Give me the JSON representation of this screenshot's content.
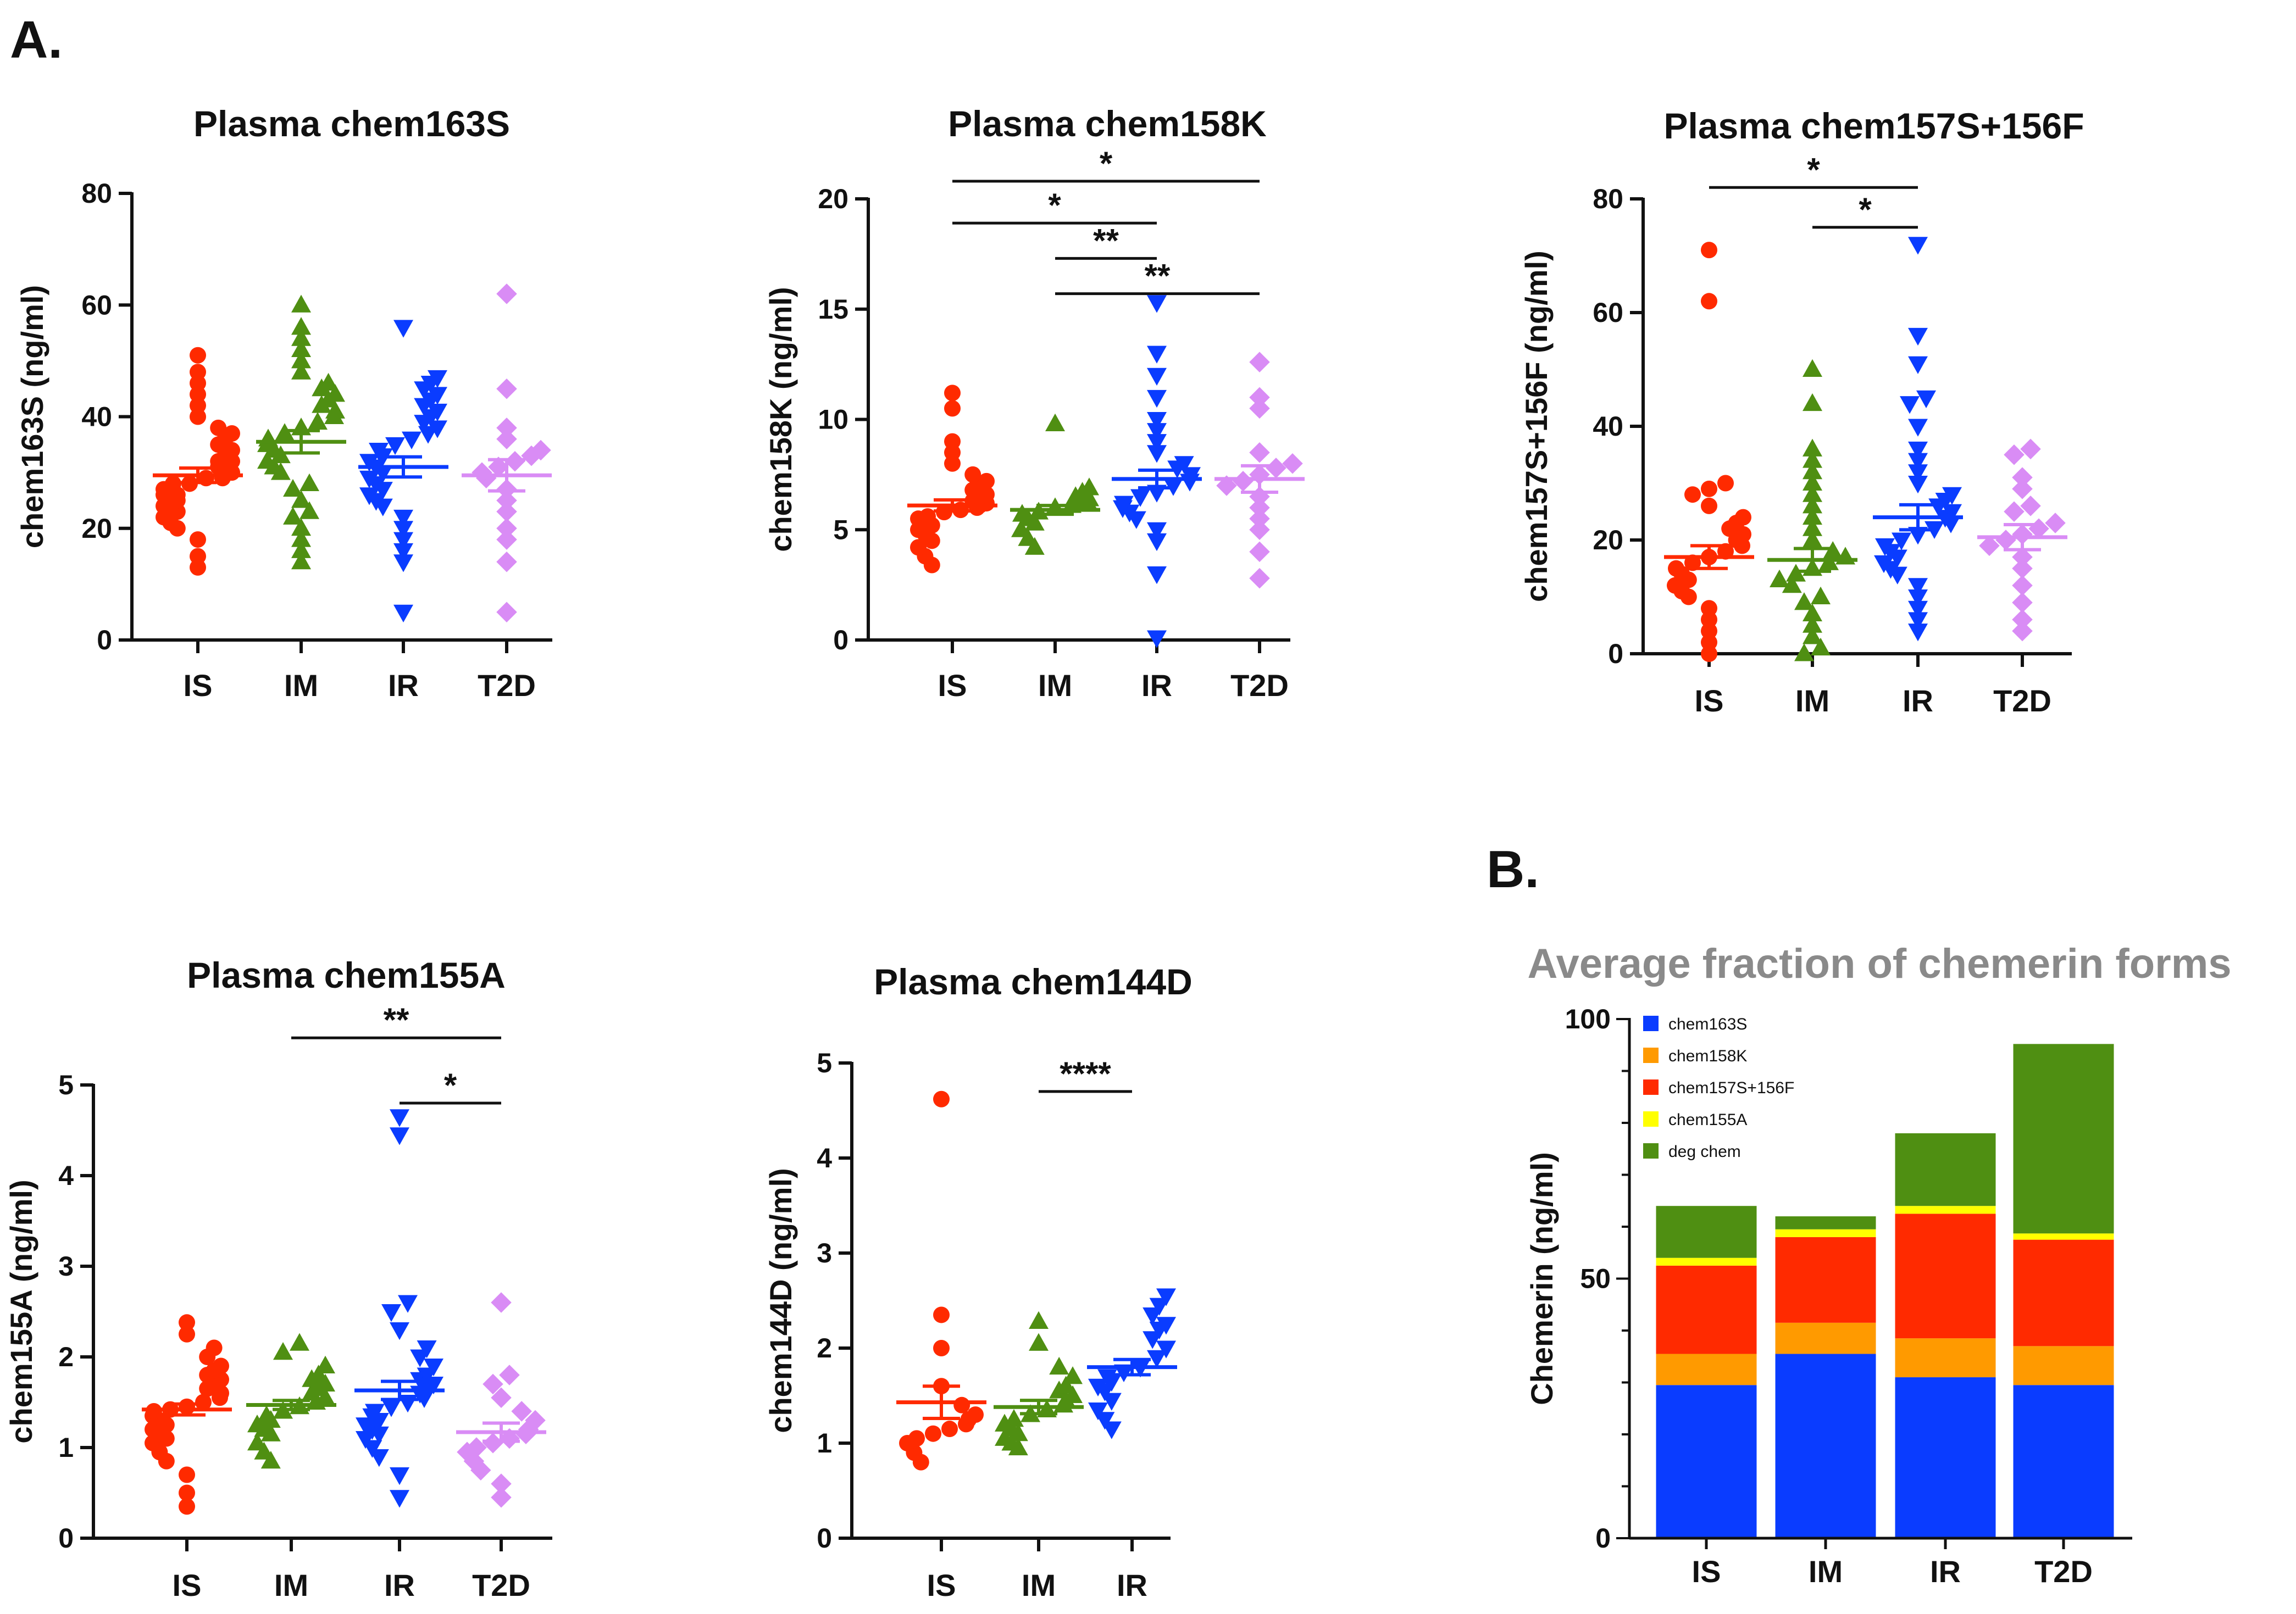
{
  "figure": {
    "panel_a_label": "A.",
    "panel_b_label": "B."
  },
  "colors": {
    "IS": "#ff2a00",
    "IM": "#4f8f12",
    "IR": "#0a3cff",
    "T2D": "#d98cf5"
  },
  "chart_data": [
    {
      "type": "scatter",
      "title": "Plasma chem163S",
      "ylabel": "chem163S (ng/ml)",
      "xlabel": "",
      "ylim": [
        0,
        80
      ],
      "yticks": [
        "0",
        "20",
        "40",
        "60",
        "80"
      ],
      "categories": [
        "IS",
        "IM",
        "IR",
        "T2D"
      ],
      "groups": [
        {
          "name": "IS",
          "mean": 29.5,
          "sem": 1.3,
          "values": [
            13,
            15,
            18,
            20,
            21,
            22,
            23,
            24,
            24,
            25,
            25,
            26,
            26,
            27,
            27,
            28,
            28,
            29,
            29,
            30,
            30,
            31,
            31,
            32,
            32,
            33,
            34,
            35,
            36,
            37,
            38,
            40,
            42,
            44,
            46,
            48,
            51
          ]
        },
        {
          "name": "IM",
          "mean": 35.5,
          "sem": 2.0,
          "values": [
            14,
            16,
            18,
            20,
            22,
            23,
            25,
            27,
            28,
            30,
            31,
            32,
            33,
            34,
            35,
            36,
            37,
            38,
            39,
            40,
            41,
            42,
            43,
            44,
            45,
            46,
            48,
            50,
            52,
            54,
            56,
            60
          ]
        },
        {
          "name": "IR",
          "mean": 31.0,
          "sem": 1.8,
          "values": [
            5,
            14,
            16,
            18,
            20,
            22,
            24,
            25,
            26,
            27,
            28,
            29,
            30,
            31,
            32,
            33,
            34,
            35,
            36,
            37,
            38,
            39,
            40,
            41,
            42,
            43,
            44,
            45,
            46,
            47,
            56
          ]
        },
        {
          "name": "T2D",
          "mean": 29.5,
          "sem": 2.8,
          "values": [
            5,
            14,
            18,
            20,
            23,
            25,
            27,
            29,
            30,
            31,
            32,
            33,
            34,
            36,
            38,
            45,
            62
          ]
        }
      ],
      "significance": []
    },
    {
      "type": "scatter",
      "title": "Plasma chem158K",
      "ylabel": "chem158K (ng/ml)",
      "xlabel": "",
      "ylim": [
        0,
        20
      ],
      "yticks": [
        "0",
        "5",
        "10",
        "15",
        "20"
      ],
      "categories": [
        "IS",
        "IM",
        "IR",
        "T2D"
      ],
      "groups": [
        {
          "name": "IS",
          "mean": 6.1,
          "sem": 0.25,
          "values": [
            3.4,
            3.8,
            4.2,
            4.5,
            4.8,
            5.0,
            5.2,
            5.4,
            5.5,
            5.6,
            5.8,
            5.9,
            6.0,
            6.1,
            6.2,
            6.3,
            6.5,
            6.6,
            6.8,
            7.0,
            7.2,
            7.5,
            8.0,
            8.5,
            9.0,
            10.5,
            11.2
          ]
        },
        {
          "name": "IM",
          "mean": 5.9,
          "sem": 0.2,
          "values": [
            4.2,
            4.6,
            5.0,
            5.3,
            5.5,
            5.7,
            5.8,
            6.0,
            6.1,
            6.2,
            6.3,
            6.4,
            6.5,
            6.7,
            6.9,
            9.8
          ]
        },
        {
          "name": "IR",
          "mean": 7.3,
          "sem": 0.4,
          "values": [
            0.1,
            3.0,
            4.5,
            5.0,
            5.5,
            5.8,
            6.0,
            6.2,
            6.5,
            6.7,
            7.0,
            7.2,
            7.5,
            7.8,
            8.0,
            8.5,
            9.0,
            9.5,
            10.0,
            11.0,
            12.0,
            13.0,
            15.3
          ]
        },
        {
          "name": "T2D",
          "mean": 7.3,
          "sem": 0.6,
          "values": [
            2.8,
            4.0,
            5.0,
            5.5,
            6.0,
            6.5,
            7.0,
            7.2,
            7.5,
            7.8,
            8.0,
            8.5,
            10.5,
            11.0,
            12.6
          ]
        }
      ],
      "significance": [
        {
          "from": "IS",
          "to": "T2D",
          "label": "*",
          "y": 20.8
        },
        {
          "from": "IS",
          "to": "IR",
          "label": "*",
          "y": 18.9
        },
        {
          "from": "IM",
          "to": "IR",
          "label": "**",
          "y": 17.3
        },
        {
          "from": "IM",
          "to": "T2D",
          "label": "**",
          "y": 15.7
        }
      ]
    },
    {
      "type": "scatter",
      "title": "Plasma chem157S+156F",
      "ylabel": "chem157S+156F (ng/ml)",
      "xlabel": "",
      "ylim": [
        0,
        80
      ],
      "yticks": [
        "0",
        "20",
        "40",
        "60",
        "80"
      ],
      "categories": [
        "IS",
        "IM",
        "IR",
        "T2D"
      ],
      "groups": [
        {
          "name": "IS",
          "mean": 17.0,
          "sem": 2.0,
          "values": [
            0,
            2,
            4,
            6,
            8,
            10,
            11,
            12,
            13,
            14,
            15,
            16,
            17,
            18,
            19,
            20,
            21,
            22,
            23,
            24,
            26,
            28,
            29,
            30,
            62,
            71
          ]
        },
        {
          "name": "IM",
          "mean": 16.5,
          "sem": 2.0,
          "values": [
            0,
            1,
            3,
            5,
            7,
            9,
            10,
            12,
            13,
            14,
            15,
            16,
            17,
            18,
            20,
            22,
            24,
            26,
            28,
            30,
            32,
            34,
            36,
            44,
            50
          ]
        },
        {
          "name": "IR",
          "mean": 24.0,
          "sem": 2.2,
          "values": [
            4,
            6,
            8,
            10,
            12,
            14,
            15,
            16,
            17,
            18,
            19,
            20,
            21,
            22,
            23,
            24,
            25,
            26,
            27,
            28,
            30,
            32,
            34,
            36,
            40,
            44,
            45,
            51,
            56,
            72
          ]
        },
        {
          "name": "T2D",
          "mean": 20.5,
          "sem": 2.2,
          "values": [
            4,
            6,
            9,
            12,
            15,
            17,
            19,
            20,
            21,
            22,
            23,
            25,
            26,
            29,
            31,
            35,
            36
          ]
        }
      ],
      "significance": [
        {
          "from": "IS",
          "to": "IR",
          "label": "*",
          "y": 82
        },
        {
          "from": "IM",
          "to": "IR",
          "label": "*",
          "y": 75
        }
      ]
    },
    {
      "type": "scatter",
      "title": "Plasma chem155A",
      "ylabel": "chem155A (ng/ml)",
      "xlabel": "",
      "ylim": [
        0,
        5
      ],
      "yticks": [
        "0",
        "1",
        "2",
        "3",
        "4",
        "5"
      ],
      "categories": [
        "IS",
        "IM",
        "IR",
        "T2D"
      ],
      "groups": [
        {
          "name": "IS",
          "mean": 1.42,
          "sem": 0.06,
          "values": [
            0.35,
            0.5,
            0.7,
            0.85,
            0.95,
            1.05,
            1.1,
            1.15,
            1.2,
            1.25,
            1.3,
            1.35,
            1.4,
            1.42,
            1.45,
            1.5,
            1.55,
            1.6,
            1.65,
            1.7,
            1.75,
            1.8,
            1.85,
            1.9,
            2.0,
            2.1,
            2.25,
            2.38
          ]
        },
        {
          "name": "IM",
          "mean": 1.47,
          "sem": 0.05,
          "values": [
            0.85,
            0.95,
            1.05,
            1.15,
            1.2,
            1.25,
            1.3,
            1.35,
            1.4,
            1.45,
            1.5,
            1.55,
            1.6,
            1.65,
            1.7,
            1.75,
            1.8,
            1.9,
            2.05,
            2.15
          ]
        },
        {
          "name": "IR",
          "mean": 1.63,
          "sem": 0.1,
          "values": [
            0.45,
            0.7,
            0.9,
            1.0,
            1.1,
            1.15,
            1.2,
            1.25,
            1.3,
            1.35,
            1.4,
            1.45,
            1.5,
            1.55,
            1.6,
            1.65,
            1.7,
            1.75,
            1.8,
            1.9,
            2.0,
            2.1,
            2.3,
            2.5,
            2.6,
            4.45,
            4.65
          ]
        },
        {
          "name": "T2D",
          "mean": 1.17,
          "sem": 0.1,
          "values": [
            0.45,
            0.6,
            0.75,
            0.85,
            0.95,
            1.0,
            1.05,
            1.1,
            1.15,
            1.2,
            1.3,
            1.4,
            1.55,
            1.7,
            1.8,
            2.6
          ]
        }
      ],
      "significance": [
        {
          "from": "IM",
          "to": "T2D",
          "label": "**",
          "y": 5.52
        },
        {
          "from": "IR",
          "to": "T2D",
          "label": "*",
          "y": 4.8
        }
      ]
    },
    {
      "type": "scatter",
      "title": "Plasma chem144D",
      "ylabel": "chem144D (ng/ml)",
      "xlabel": "",
      "ylim": [
        0,
        5
      ],
      "yticks": [
        "0",
        "1",
        "2",
        "3",
        "4",
        "5"
      ],
      "categories": [
        "IS",
        "IM",
        "IR"
      ],
      "groups": [
        {
          "name": "IS",
          "mean": 1.43,
          "sem": 0.17,
          "values": [
            0.8,
            0.9,
            1.0,
            1.05,
            1.1,
            1.15,
            1.2,
            1.25,
            1.3,
            1.4,
            1.6,
            2.0,
            2.35,
            4.62
          ]
        },
        {
          "name": "IM",
          "mean": 1.38,
          "sem": 0.07,
          "values": [
            0.95,
            1.0,
            1.05,
            1.1,
            1.15,
            1.2,
            1.25,
            1.3,
            1.35,
            1.4,
            1.45,
            1.5,
            1.55,
            1.6,
            1.7,
            1.8,
            2.05,
            2.28
          ]
        },
        {
          "name": "IR",
          "mean": 1.8,
          "sem": 0.08,
          "values": [
            1.15,
            1.25,
            1.35,
            1.45,
            1.55,
            1.6,
            1.65,
            1.7,
            1.75,
            1.8,
            1.9,
            2.0,
            2.1,
            2.2,
            2.25,
            2.35,
            2.45,
            2.55
          ]
        }
      ],
      "significance": [
        {
          "from": "IM",
          "to": "IR",
          "label": "****",
          "y": 4.7
        }
      ]
    },
    {
      "type": "bar",
      "stacked": true,
      "title": "Average fraction of chemerin forms",
      "ylabel": "Chemerin (ng/ml)",
      "xlabel": "",
      "ylim": [
        0,
        100
      ],
      "yticks": [
        "0",
        "50",
        "100"
      ],
      "categories": [
        "IS",
        "IM",
        "IR",
        "T2D"
      ],
      "legend_position": "top-left",
      "series": [
        {
          "name": "chem163S",
          "color": "#0a3cff",
          "values": [
            29.5,
            35.5,
            31,
            29.5
          ]
        },
        {
          "name": "chem158K",
          "color": "#ff9a00",
          "values": [
            6,
            6,
            7.5,
            7.5
          ]
        },
        {
          "name": "chem157S+156F",
          "color": "#ff2a00",
          "values": [
            17,
            16.5,
            24,
            20.5
          ]
        },
        {
          "name": "chem155A",
          "color": "#ffff00",
          "values": [
            1.5,
            1.5,
            1.5,
            1.2
          ]
        },
        {
          "name": "deg chem",
          "color": "#4f8f12",
          "values": [
            10,
            2.5,
            14,
            36.5
          ]
        }
      ]
    }
  ]
}
